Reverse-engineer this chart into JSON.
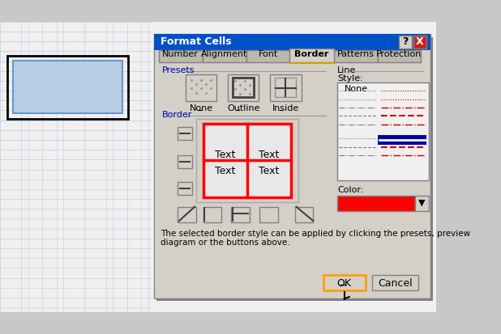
{
  "bg_color": "#c0c0c0",
  "spreadsheet_bg": "#ffffff",
  "spreadsheet_grid_color": "#d0d0d0",
  "spreadsheet_cell_selected": "#b8cce4",
  "dialog_bg": "#d4d0c8",
  "dialog_title_bg": "#0050c8",
  "dialog_title_text": "Format Cells",
  "dialog_title_color": "#ffffff",
  "tab_active": "Border",
  "tabs": [
    "Number",
    "Alignment",
    "Font",
    "Border",
    "Patterns",
    "Protection"
  ],
  "presets_label": "Presets",
  "border_label": "Border",
  "line_label": "Line",
  "style_label": "Style:",
  "color_label": "Color:",
  "none_label": "None",
  "outline_label": "Outline",
  "inside_label": "Inside",
  "text_label": "Text",
  "ok_label": "OK",
  "cancel_label": "Cancel",
  "footer_text": "The selected border style can be applied by clicking the presets, preview\ndiagram or the buttons above.",
  "border_color_selected": "#ff0000",
  "active_tab_color": "#d4d0c8",
  "inactive_tab_color": "#bab8b0"
}
